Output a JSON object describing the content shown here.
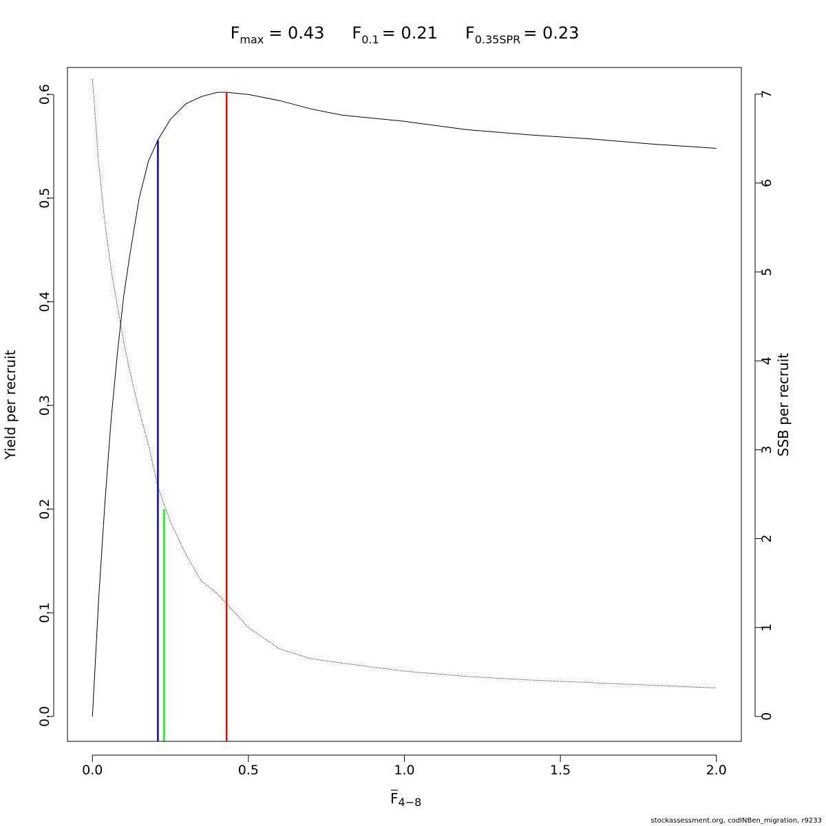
{
  "chart_data": {
    "type": "line",
    "title_parts": [
      {
        "symbol": "F",
        "subscript": "max",
        "value": "= 0.43"
      },
      {
        "symbol": "F",
        "subscript": "0.1",
        "value": "= 0.21"
      },
      {
        "symbol": "F",
        "subscript": "0.35SPR",
        "value": "= 0.23"
      }
    ],
    "xlabel": {
      "symbol": "F",
      "subscript": "4−8"
    },
    "ylabel": "Yield per recruit",
    "y2label": "SSB per recruit",
    "xlim": [
      -0.08,
      2.08
    ],
    "ylim": [
      -0.024,
      0.626
    ],
    "y2lim": [
      -0.28,
      7.3
    ],
    "x_ticks": [
      0.0,
      0.5,
      1.0,
      1.5,
      2.0
    ],
    "x_tick_labels": [
      "0.0",
      "0.5",
      "1.0",
      "1.5",
      "2.0"
    ],
    "y_ticks": [
      0.0,
      0.1,
      0.2,
      0.3,
      0.4,
      0.5,
      0.6
    ],
    "y_tick_labels": [
      "0.0",
      "0.1",
      "0.2",
      "0.3",
      "0.4",
      "0.5",
      "0.6"
    ],
    "y2_ticks": [
      0,
      1,
      2,
      3,
      4,
      5,
      6,
      7
    ],
    "y2_tick_labels": [
      "0",
      "1",
      "2",
      "3",
      "4",
      "5",
      "6",
      "7"
    ],
    "grid": false,
    "series": [
      {
        "name": "Yield per recruit",
        "axis": "left",
        "style": "solid",
        "color": "#000000",
        "x": [
          0.0,
          0.02,
          0.04,
          0.06,
          0.08,
          0.1,
          0.12,
          0.15,
          0.18,
          0.21,
          0.25,
          0.3,
          0.35,
          0.4,
          0.43,
          0.5,
          0.6,
          0.7,
          0.8,
          1.0,
          1.2,
          1.4,
          1.6,
          1.8,
          2.0
        ],
        "y": [
          0.0,
          0.113,
          0.206,
          0.287,
          0.35,
          0.405,
          0.445,
          0.5,
          0.536,
          0.556,
          0.576,
          0.591,
          0.598,
          0.602,
          0.602,
          0.6,
          0.594,
          0.586,
          0.58,
          0.574,
          0.566,
          0.561,
          0.557,
          0.552,
          0.548
        ]
      },
      {
        "name": "SSB per recruit",
        "axis": "right",
        "style": "dotted",
        "color": "#000000",
        "x": [
          0.0,
          0.02,
          0.04,
          0.06,
          0.08,
          0.1,
          0.12,
          0.15,
          0.18,
          0.21,
          0.25,
          0.3,
          0.35,
          0.4,
          0.43,
          0.5,
          0.6,
          0.7,
          0.8,
          1.0,
          1.2,
          1.4,
          1.6,
          1.8,
          2.0
        ],
        "y": [
          7.17,
          6.23,
          5.55,
          5.02,
          4.62,
          4.22,
          3.88,
          3.44,
          3.05,
          2.58,
          2.19,
          1.82,
          1.52,
          1.38,
          1.27,
          1.0,
          0.76,
          0.65,
          0.6,
          0.51,
          0.45,
          0.41,
          0.38,
          0.35,
          0.32
        ]
      }
    ],
    "reference_lines": [
      {
        "name": "Fmax",
        "x": 0.43,
        "y_top": 0.602,
        "color": "#ff0000"
      },
      {
        "name": "F0.1",
        "x": 0.21,
        "y_top": 0.556,
        "color": "#0000cc"
      },
      {
        "name": "F0.35SPR",
        "x": 0.23,
        "y_top": 0.2,
        "color": "#00ff00"
      }
    ]
  },
  "footer_text": "stockassessment.org, codINBen_migration, r9233"
}
